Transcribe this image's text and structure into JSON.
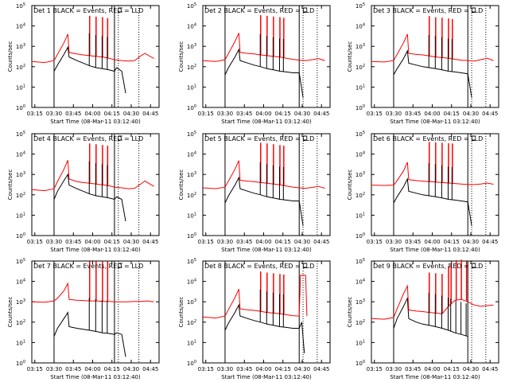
{
  "figure": {
    "shared_xticks": [
      "03:15",
      "03:30",
      "03:45",
      "04:00",
      "04:15",
      "04:30",
      "04:45"
    ],
    "shared_yticks": [
      {
        "exp": 0,
        "label": "10",
        "sup": "0"
      },
      {
        "exp": 1,
        "label": "10",
        "sup": "1"
      },
      {
        "exp": 2,
        "label": "10",
        "sup": "2"
      },
      {
        "exp": 3,
        "label": "10",
        "sup": "3"
      },
      {
        "exp": 4,
        "label": "10",
        "sup": "4"
      },
      {
        "exp": 5,
        "label": "10",
        "sup": "5"
      }
    ],
    "xlabel": "Start Time (08-Mar-11 03:12:40)",
    "ylabel": "Counts/sec",
    "colors": {
      "events": "#000000",
      "lld": "#ff0000",
      "axes": "#000000"
    }
  },
  "chart_data": [
    {
      "type": "line",
      "title": "Det 1 BLACK = Events, RED = LLD",
      "detector": 1,
      "yscale": "log",
      "xlim_minutes": [
        0,
        99
      ],
      "ylim": [
        1,
        100000
      ],
      "vlines": [
        {
          "minute": 17.3,
          "style": "solid"
        },
        {
          "minute": 64.3,
          "style": "solid"
        },
        {
          "minute": 67.3,
          "style": "dotted"
        },
        {
          "minute": 83.3,
          "style": "dotted"
        }
      ],
      "series": [
        {
          "name": "BLACK = Events",
          "color": "#000000",
          "x": [
            17.3,
            20,
            25,
            28,
            29,
            35,
            40,
            45,
            50,
            55,
            60,
            64.3,
            66,
            70,
            73
          ],
          "y": [
            60,
            120,
            400,
            900,
            300,
            200,
            150,
            110,
            90,
            80,
            70,
            60,
            90,
            60,
            5
          ]
        },
        {
          "name": "RED = LLD",
          "color": "#ff0000",
          "x": [
            0,
            10,
            17.3,
            20,
            25,
            28,
            29,
            35,
            40,
            45,
            50,
            55,
            60,
            64.3,
            70,
            75,
            80,
            85,
            88,
            90,
            95
          ],
          "y": [
            180,
            160,
            200,
            400,
            1500,
            4000,
            500,
            420,
            380,
            350,
            320,
            300,
            260,
            220,
            200,
            190,
            200,
            350,
            450,
            380,
            250
          ]
        }
      ],
      "spikes_minutes": [
        45,
        50,
        55,
        59
      ]
    },
    {
      "type": "line",
      "title": "Det 2 BLACK = Events, RED = LLD",
      "detector": 2,
      "yscale": "log",
      "xlim_minutes": [
        0,
        99
      ],
      "ylim": [
        1,
        100000
      ],
      "vlines": [
        {
          "minute": 17.3,
          "style": "solid"
        },
        {
          "minute": 75,
          "style": "solid"
        },
        {
          "minute": 78,
          "style": "dotted"
        },
        {
          "minute": 89,
          "style": "dotted"
        }
      ],
      "series": [
        {
          "name": "BLACK = Events",
          "color": "#000000",
          "x": [
            17.3,
            20,
            25,
            28,
            29,
            35,
            40,
            45,
            50,
            55,
            60,
            65,
            70,
            75,
            78
          ],
          "y": [
            40,
            90,
            300,
            700,
            200,
            150,
            120,
            100,
            80,
            70,
            60,
            55,
            50,
            50,
            3
          ]
        },
        {
          "name": "RED = LLD",
          "color": "#ff0000",
          "x": [
            0,
            10,
            17.3,
            20,
            25,
            28,
            29,
            35,
            40,
            45,
            50,
            55,
            60,
            65,
            70,
            75,
            80,
            85,
            90,
            95
          ],
          "y": [
            200,
            180,
            220,
            450,
            1700,
            4500,
            500,
            450,
            420,
            380,
            350,
            320,
            300,
            260,
            230,
            210,
            200,
            220,
            250,
            200
          ]
        }
      ],
      "spikes_minutes": [
        45,
        50,
        55,
        60,
        63
      ]
    },
    {
      "type": "line",
      "title": "Det 3 BLACK = Events, RED = LLD",
      "detector": 3,
      "yscale": "log",
      "xlim_minutes": [
        0,
        99
      ],
      "ylim": [
        1,
        100000
      ],
      "vlines": [
        {
          "minute": 17.3,
          "style": "solid"
        },
        {
          "minute": 75,
          "style": "solid"
        },
        {
          "minute": 78,
          "style": "dotted"
        },
        {
          "minute": 89,
          "style": "dotted"
        }
      ],
      "series": [
        {
          "name": "BLACK = Events",
          "color": "#000000",
          "x": [
            17.3,
            20,
            25,
            28,
            29,
            35,
            40,
            45,
            50,
            55,
            60,
            65,
            70,
            75,
            78
          ],
          "y": [
            40,
            80,
            250,
            600,
            150,
            120,
            100,
            90,
            80,
            70,
            60,
            55,
            50,
            45,
            3
          ]
        },
        {
          "name": "RED = LLD",
          "color": "#ff0000",
          "x": [
            0,
            10,
            17.3,
            20,
            25,
            28,
            29,
            35,
            40,
            45,
            50,
            55,
            60,
            65,
            70,
            75,
            80,
            85,
            90,
            95
          ],
          "y": [
            180,
            170,
            200,
            400,
            1500,
            4000,
            450,
            400,
            380,
            340,
            300,
            280,
            260,
            230,
            210,
            200,
            190,
            220,
            260,
            200
          ]
        }
      ],
      "spikes_minutes": [
        45,
        50,
        55,
        60,
        63
      ]
    },
    {
      "type": "line",
      "title": "Det 4 BLACK = Events, RED = LLD",
      "detector": 4,
      "yscale": "log",
      "xlim_minutes": [
        0,
        99
      ],
      "ylim": [
        1,
        100000
      ],
      "vlines": [
        {
          "minute": 17.3,
          "style": "solid"
        },
        {
          "minute": 64.3,
          "style": "solid"
        },
        {
          "minute": 67.3,
          "style": "dotted"
        },
        {
          "minute": 83.3,
          "style": "dotted"
        }
      ],
      "series": [
        {
          "name": "BLACK = Events",
          "color": "#000000",
          "x": [
            17.3,
            20,
            25,
            28,
            29,
            35,
            40,
            45,
            50,
            55,
            60,
            64.3,
            66,
            70,
            73
          ],
          "y": [
            60,
            150,
            500,
            1000,
            300,
            200,
            150,
            110,
            90,
            80,
            70,
            60,
            80,
            60,
            5
          ]
        },
        {
          "name": "RED = LLD",
          "color": "#ff0000",
          "x": [
            0,
            10,
            17.3,
            20,
            25,
            28,
            29,
            35,
            40,
            45,
            50,
            55,
            60,
            64.3,
            70,
            75,
            80,
            85,
            88,
            90,
            95
          ],
          "y": [
            180,
            160,
            200,
            450,
            1800,
            5000,
            600,
            450,
            400,
            370,
            340,
            310,
            280,
            240,
            220,
            200,
            210,
            350,
            480,
            400,
            260
          ]
        }
      ],
      "spikes_minutes": [
        45,
        50,
        55,
        59
      ]
    },
    {
      "type": "line",
      "title": "Det 5 BLACK = Events, RED = LLD",
      "detector": 5,
      "yscale": "log",
      "xlim_minutes": [
        0,
        99
      ],
      "ylim": [
        1,
        100000
      ],
      "vlines": [
        {
          "minute": 17.3,
          "style": "solid"
        },
        {
          "minute": 75,
          "style": "solid"
        },
        {
          "minute": 78,
          "style": "dotted"
        },
        {
          "minute": 89,
          "style": "dotted"
        }
      ],
      "series": [
        {
          "name": "BLACK = Events",
          "color": "#000000",
          "x": [
            17.3,
            20,
            25,
            28,
            29,
            35,
            40,
            45,
            50,
            55,
            60,
            65,
            70,
            75,
            78
          ],
          "y": [
            40,
            90,
            300,
            700,
            200,
            150,
            120,
            100,
            80,
            70,
            60,
            55,
            50,
            50,
            3
          ]
        },
        {
          "name": "RED = LLD",
          "color": "#ff0000",
          "x": [
            0,
            10,
            17.3,
            20,
            25,
            28,
            29,
            35,
            40,
            45,
            50,
            55,
            60,
            65,
            70,
            75,
            80,
            85,
            90,
            95
          ],
          "y": [
            220,
            200,
            240,
            480,
            1800,
            4800,
            520,
            470,
            440,
            400,
            370,
            340,
            310,
            270,
            240,
            220,
            210,
            230,
            260,
            210
          ]
        }
      ],
      "spikes_minutes": [
        45,
        50,
        55,
        60,
        63
      ]
    },
    {
      "type": "line",
      "title": "Det 6 BLACK = Events, RED = LLD",
      "detector": 6,
      "yscale": "log",
      "xlim_minutes": [
        0,
        99
      ],
      "ylim": [
        1,
        100000
      ],
      "vlines": [
        {
          "minute": 17.3,
          "style": "solid"
        },
        {
          "minute": 75,
          "style": "solid"
        },
        {
          "minute": 78,
          "style": "dotted"
        },
        {
          "minute": 89,
          "style": "dotted"
        }
      ],
      "series": [
        {
          "name": "BLACK = Events",
          "color": "#000000",
          "x": [
            17.3,
            20,
            25,
            28,
            29,
            35,
            40,
            45,
            50,
            55,
            60,
            65,
            70,
            75,
            78
          ],
          "y": [
            40,
            80,
            250,
            600,
            150,
            120,
            100,
            90,
            80,
            70,
            60,
            55,
            50,
            45,
            3
          ]
        },
        {
          "name": "RED = LLD",
          "color": "#ff0000",
          "x": [
            0,
            10,
            17.3,
            20,
            25,
            28,
            29,
            35,
            40,
            45,
            50,
            55,
            60,
            65,
            70,
            75,
            80,
            85,
            90,
            95
          ],
          "y": [
            300,
            290,
            300,
            500,
            1500,
            4000,
            550,
            500,
            470,
            440,
            420,
            400,
            380,
            360,
            340,
            320,
            320,
            340,
            380,
            330
          ]
        }
      ],
      "spikes_minutes": [
        45,
        50,
        55,
        60,
        63
      ]
    },
    {
      "type": "line",
      "title": "Det 7 BLACK = Events, RED = LLD",
      "detector": 7,
      "yscale": "log",
      "xlim_minutes": [
        0,
        99
      ],
      "ylim": [
        1,
        100000
      ],
      "vlines": [
        {
          "minute": 17.3,
          "style": "solid"
        },
        {
          "minute": 64.3,
          "style": "solid"
        },
        {
          "minute": 67.3,
          "style": "dotted"
        },
        {
          "minute": 83.3,
          "style": "dotted"
        }
      ],
      "series": [
        {
          "name": "BLACK = Events",
          "color": "#000000",
          "x": [
            17.3,
            20,
            25,
            28,
            29,
            35,
            40,
            45,
            50,
            55,
            60,
            64.3,
            66,
            70,
            73
          ],
          "y": [
            20,
            50,
            150,
            300,
            60,
            50,
            45,
            40,
            35,
            30,
            28,
            25,
            30,
            25,
            2
          ]
        },
        {
          "name": "RED = LLD",
          "color": "#ff0000",
          "x": [
            0,
            10,
            17.3,
            20,
            25,
            28,
            29,
            35,
            40,
            45,
            50,
            55,
            60,
            64.3,
            70,
            75,
            80,
            85,
            90,
            95
          ],
          "y": [
            1000,
            950,
            1100,
            1500,
            3500,
            8000,
            1300,
            1200,
            1150,
            1100,
            1100,
            1050,
            1050,
            1000,
            1000,
            1000,
            1050,
            1050,
            1100,
            1000
          ]
        }
      ],
      "spikes_minutes": [
        45,
        50,
        55,
        59
      ]
    },
    {
      "type": "line",
      "title": "Det 8 BLACK = Events, RED = LLD",
      "detector": 8,
      "yscale": "log",
      "xlim_minutes": [
        0,
        99
      ],
      "ylim": [
        1,
        100000
      ],
      "vlines": [
        {
          "minute": 17.3,
          "style": "solid"
        },
        {
          "minute": 75,
          "style": "solid"
        },
        {
          "minute": 78,
          "style": "dotted"
        },
        {
          "minute": 89,
          "style": "dotted"
        }
      ],
      "series": [
        {
          "name": "BLACK = Events",
          "color": "#000000",
          "x": [
            17.3,
            20,
            25,
            28,
            29,
            35,
            40,
            45,
            50,
            55,
            60,
            65,
            70,
            75,
            77,
            79
          ],
          "y": [
            40,
            90,
            300,
            700,
            200,
            150,
            120,
            100,
            80,
            70,
            60,
            55,
            50,
            50,
            100,
            3
          ]
        },
        {
          "name": "RED = LLD",
          "color": "#ff0000",
          "x": [
            0,
            10,
            17.3,
            20,
            25,
            28,
            29,
            35,
            40,
            45,
            50,
            55,
            60,
            65,
            70,
            75,
            76,
            80,
            81
          ],
          "y": [
            180,
            160,
            200,
            420,
            1600,
            4200,
            450,
            400,
            380,
            340,
            300,
            280,
            260,
            230,
            210,
            200,
            20000,
            20000,
            200
          ]
        }
      ],
      "spikes_minutes": [
        45,
        50,
        55,
        60,
        63
      ]
    },
    {
      "type": "line",
      "title": "Det 9 BLACK = Events, RED = LLD",
      "detector": 9,
      "yscale": "log",
      "xlim_minutes": [
        0,
        99
      ],
      "ylim": [
        1,
        100000
      ],
      "vlines": [
        {
          "minute": 17.3,
          "style": "solid"
        },
        {
          "minute": 75,
          "style": "solid"
        },
        {
          "minute": 78,
          "style": "dotted"
        },
        {
          "minute": 89,
          "style": "dotted"
        }
      ],
      "series": [
        {
          "name": "BLACK = Events",
          "color": "#000000",
          "x": [
            17.3,
            20,
            25,
            28,
            29,
            35,
            40,
            45,
            50,
            55,
            60,
            65,
            70,
            75
          ],
          "y": [
            50,
            150,
            600,
            1500,
            150,
            100,
            80,
            70,
            60,
            50,
            40,
            30,
            25,
            20
          ]
        },
        {
          "name": "RED = LLD",
          "color": "#ff0000",
          "x": [
            0,
            10,
            17.3,
            20,
            25,
            28,
            29,
            35,
            40,
            45,
            50,
            55,
            60,
            65,
            70,
            75,
            80,
            85,
            90,
            95
          ],
          "y": [
            150,
            140,
            170,
            450,
            2500,
            6000,
            400,
            350,
            330,
            300,
            280,
            260,
            600,
            1200,
            1300,
            1000,
            700,
            600,
            650,
            700
          ]
        }
      ],
      "spikes_minutes": [
        45,
        50,
        55,
        60,
        62,
        66,
        70,
        74
      ]
    }
  ]
}
